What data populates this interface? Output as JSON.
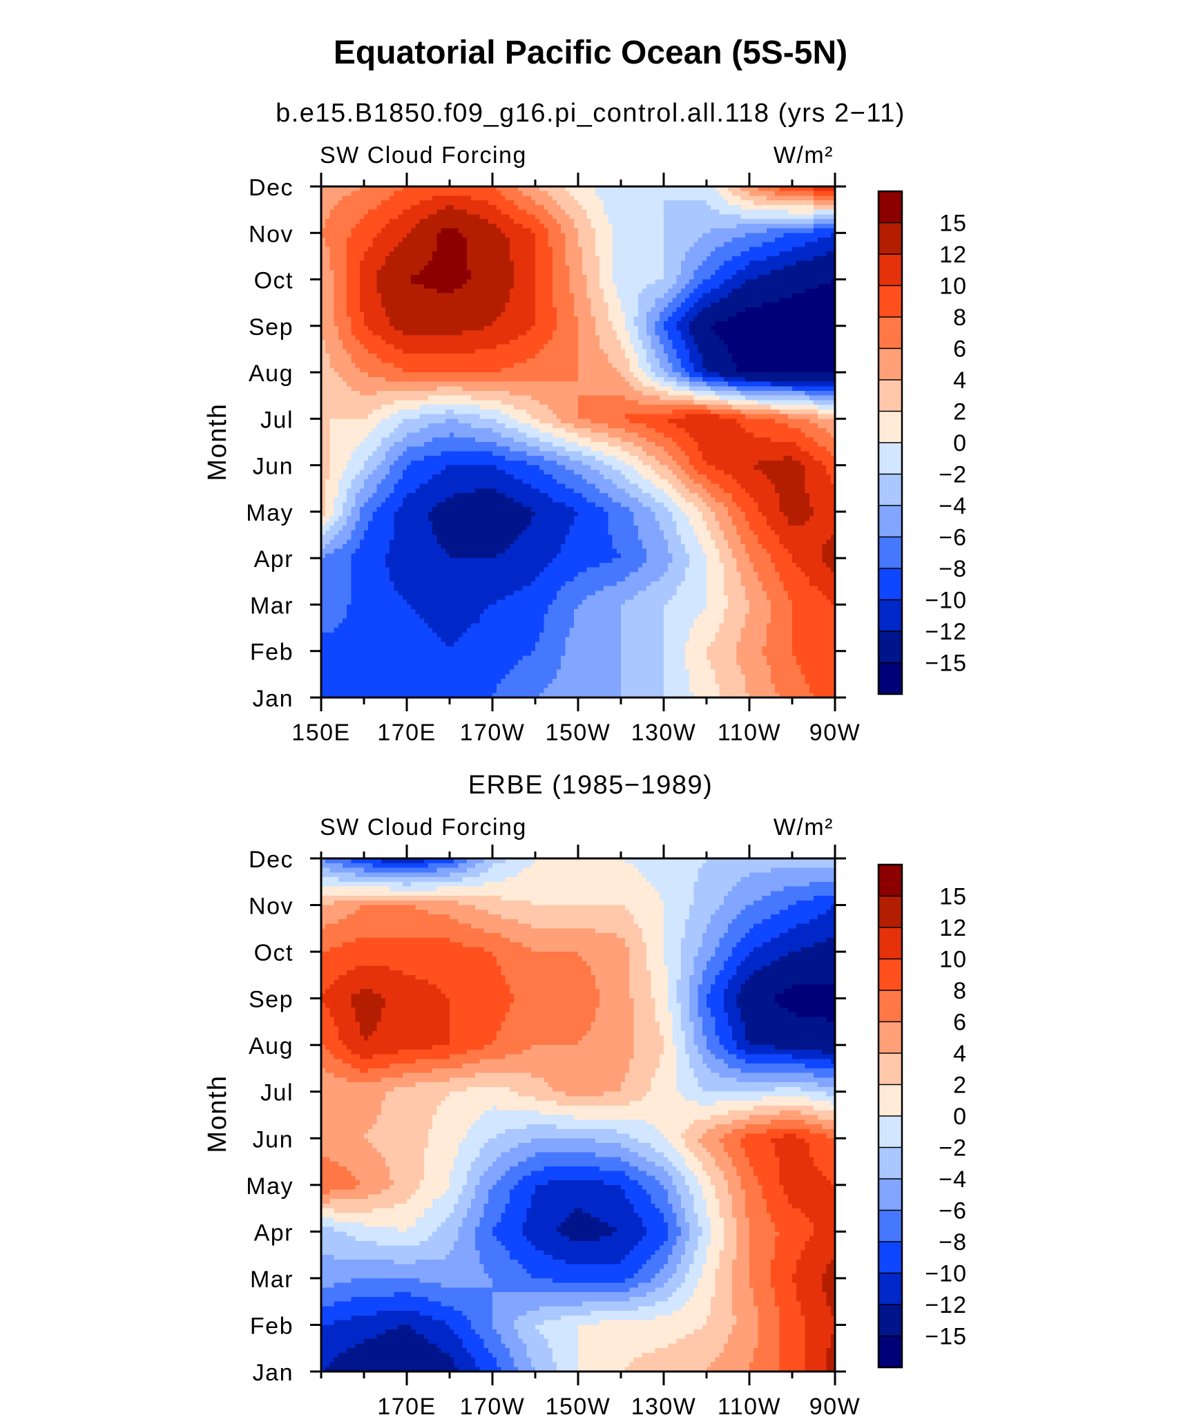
{
  "figure": {
    "title": "Equatorial Pacific Ocean (5S-5N)"
  },
  "colorbar": {
    "levels": [
      -15,
      -12,
      -10,
      -8,
      -6,
      -4,
      -2,
      0,
      2,
      4,
      6,
      8,
      10,
      12,
      15
    ],
    "labels": [
      "15",
      "12",
      "10",
      "8",
      "6",
      "4",
      "2",
      "0",
      "−2",
      "−4",
      "−6",
      "−8",
      "−10",
      "−12",
      "−15"
    ],
    "colors": [
      "#000078",
      "#00148c",
      "#0028c8",
      "#0f46ff",
      "#4678ff",
      "#82a5ff",
      "#aac8ff",
      "#d2e6ff",
      "#ffebd7",
      "#ffc8aa",
      "#ffa078",
      "#ff7846",
      "#ff501e",
      "#e6320a",
      "#b41e00",
      "#8c0000"
    ]
  },
  "chart_data": [
    {
      "type": "heatmap",
      "subtitle": "b.e15.B1850.f09_g16.pi_control.all.118 (yrs 2−11)",
      "left_label": "SW Cloud Forcing",
      "units": "W/m²",
      "ylabel": "Month",
      "x_tick_labels": [
        "150E",
        "170E",
        "170W",
        "150W",
        "130W",
        "110W",
        "90W"
      ],
      "y_tick_labels": [
        "Jan",
        "Feb",
        "Mar",
        "Apr",
        "May",
        "Jun",
        "Jul",
        "Aug",
        "Sep",
        "Oct",
        "Nov",
        "Dec"
      ],
      "longitudes": [
        150,
        160,
        170,
        180,
        190,
        200,
        210,
        220,
        230,
        240,
        250,
        260,
        270
      ],
      "values": [
        [
          -10,
          -9,
          -8,
          -9,
          -8,
          -6,
          -5,
          -4,
          -2,
          1,
          4,
          7,
          9
        ],
        [
          -9,
          -9,
          -9,
          -10,
          -9,
          -8,
          -5,
          -4,
          -2,
          2,
          5,
          8,
          10
        ],
        [
          -6,
          -9,
          -10,
          -11,
          -10,
          -9,
          -6,
          -4,
          -2,
          0,
          4,
          8,
          10
        ],
        [
          -6,
          -9,
          -11,
          -12,
          -12,
          -11,
          -9,
          -8,
          -5,
          0,
          6,
          10,
          13
        ],
        [
          3,
          -7,
          -11,
          -13,
          -14,
          -12,
          -10,
          -7,
          -3,
          3,
          9,
          13,
          11
        ],
        [
          3,
          -2,
          -8,
          -10,
          -10,
          -8,
          -5,
          -1,
          4,
          10,
          12,
          13,
          9
        ],
        [
          2,
          2,
          -2,
          -4,
          -2,
          2,
          6,
          8,
          10,
          12,
          9,
          7,
          4
        ],
        [
          3,
          6,
          8,
          8,
          8,
          7,
          6,
          4,
          -4,
          -12,
          -16,
          -16,
          -16
        ],
        [
          4,
          10,
          13,
          13,
          12,
          10,
          6,
          1,
          -8,
          -15,
          -17,
          -17,
          -17
        ],
        [
          4,
          11,
          15,
          16,
          14,
          10,
          5,
          -1,
          -2,
          -8,
          -12,
          -14,
          -15
        ],
        [
          6,
          9,
          12,
          16,
          13,
          10,
          4,
          -1,
          -2,
          -4,
          -6,
          -8,
          -10
        ],
        [
          5,
          6,
          8,
          9,
          8,
          4,
          1,
          -2,
          -2,
          -1,
          6,
          10,
          12
        ]
      ]
    },
    {
      "type": "heatmap",
      "subtitle": "ERBE (1985−1989)",
      "left_label": "SW Cloud Forcing",
      "units": "W/m²",
      "ylabel": "Month",
      "x_tick_labels": [
        "170E",
        "170W",
        "150W",
        "130W",
        "110W",
        "90W"
      ],
      "y_tick_labels": [
        "Jan",
        "Feb",
        "Mar",
        "Apr",
        "May",
        "Jun",
        "Jul",
        "Aug",
        "Sep",
        "Oct",
        "Nov",
        "Dec"
      ],
      "longitudes": [
        150,
        160,
        170,
        180,
        190,
        200,
        210,
        220,
        230,
        240,
        250,
        260,
        270
      ],
      "values": [
        [
          -12,
          -14,
          -15,
          -13,
          -9,
          -4,
          0,
          2,
          3,
          4,
          6,
          9,
          13
        ],
        [
          -10,
          -11,
          -12,
          -10,
          -6,
          -2,
          0,
          1,
          1,
          2,
          5,
          9,
          12
        ],
        [
          -5,
          -6,
          -6,
          -5,
          -6,
          -8,
          -9,
          -9,
          -5,
          1,
          6,
          10,
          13
        ],
        [
          -3,
          -1,
          0,
          -3,
          -8,
          -11,
          -13,
          -12,
          -9,
          -1,
          6,
          9,
          11
        ],
        [
          8,
          6,
          3,
          0,
          -6,
          -10,
          -11,
          -10,
          -6,
          1,
          7,
          11,
          10
        ],
        [
          5,
          4,
          3,
          1,
          -2,
          -4,
          -4,
          -3,
          0,
          5,
          9,
          11,
          8
        ],
        [
          4,
          5,
          3,
          2,
          1,
          3,
          5,
          4,
          1,
          -2,
          -2,
          -1,
          -3
        ],
        [
          8,
          12,
          11,
          10,
          8,
          6,
          6,
          5,
          2,
          -6,
          -12,
          -13,
          -14
        ],
        [
          10,
          13,
          11,
          10,
          9,
          7,
          7,
          5,
          1,
          -8,
          -14,
          -16,
          -16
        ],
        [
          8,
          9,
          9,
          9,
          8,
          6,
          6,
          5,
          0,
          -5,
          -10,
          -12,
          -13
        ],
        [
          4,
          6,
          6,
          5,
          3,
          2,
          2,
          2,
          0,
          -3,
          -6,
          -8,
          -10
        ],
        [
          -6,
          -10,
          -12,
          -9,
          -3,
          0,
          0,
          0,
          -1,
          -2,
          -3,
          -3,
          -2
        ]
      ]
    }
  ]
}
